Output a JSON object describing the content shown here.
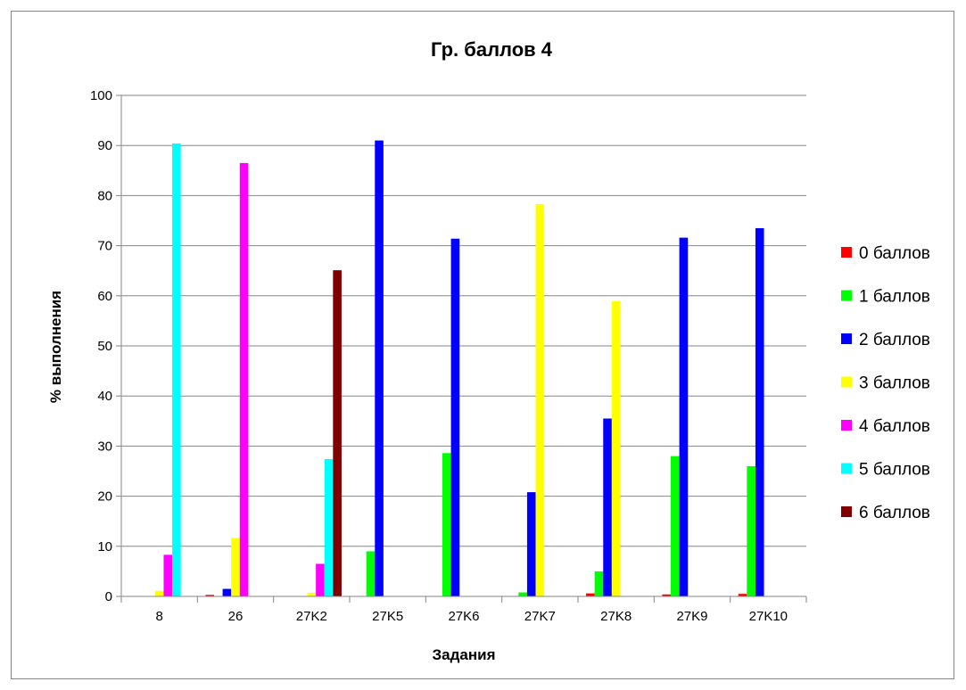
{
  "chart_data": {
    "type": "bar",
    "title": "Гр. баллов 4",
    "xlabel": "Задания",
    "ylabel": "% выполнения",
    "ylim": [
      0,
      100
    ],
    "yticks": [
      "0",
      "10",
      "20",
      "30",
      "40",
      "50",
      "60",
      "70",
      "80",
      "90",
      "100"
    ],
    "grid": true,
    "legend_position": "right",
    "categories": [
      "8",
      "26",
      "27K2",
      "27K5",
      "27K6",
      "27K7",
      "27K8",
      "27K9",
      "27K10"
    ],
    "series": [
      {
        "name": "0 баллов",
        "color": "#ff0000",
        "values": [
          0,
          0.3,
          0,
          0,
          0,
          0,
          0.6,
          0.4,
          0.5
        ]
      },
      {
        "name": "1 баллов",
        "color": "#00ff00",
        "values": [
          0,
          0,
          0,
          9,
          28.6,
          0.8,
          5,
          28,
          26
        ]
      },
      {
        "name": "2 баллов",
        "color": "#0000ff",
        "values": [
          0,
          1.5,
          0,
          91,
          71.4,
          20.8,
          35.5,
          71.6,
          73.5
        ]
      },
      {
        "name": "3 баллов",
        "color": "#ffff00",
        "values": [
          1.1,
          11.7,
          0.7,
          0,
          0,
          78.3,
          58.9,
          0,
          0
        ]
      },
      {
        "name": "4 баллов",
        "color": "#ff00ff",
        "values": [
          8.3,
          86.5,
          6.5,
          0,
          0,
          0,
          0,
          0,
          0
        ]
      },
      {
        "name": "5 баллов",
        "color": "#00ffff",
        "values": [
          90.4,
          0,
          27.4,
          0,
          0,
          0,
          0,
          0,
          0
        ]
      },
      {
        "name": "6 баллов",
        "color": "#800000",
        "values": [
          0,
          0,
          65.1,
          0,
          0,
          0,
          0,
          0,
          0
        ]
      }
    ]
  }
}
